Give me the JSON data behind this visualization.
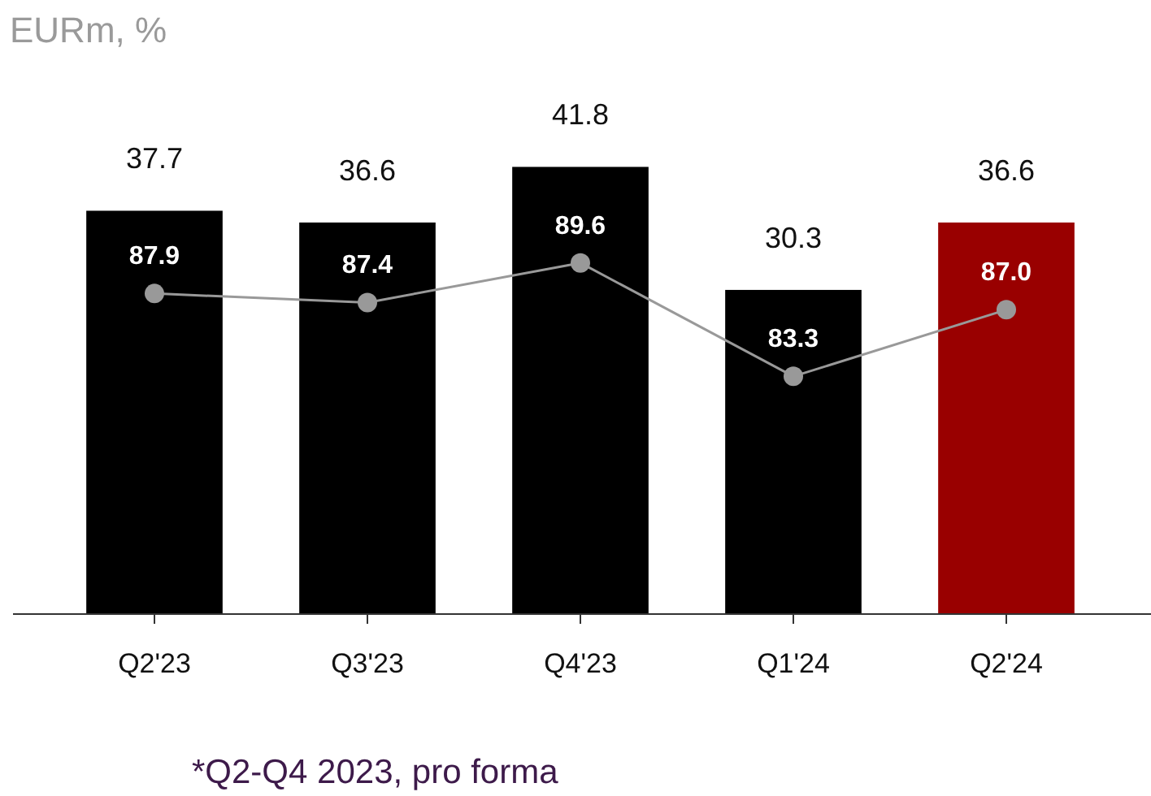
{
  "chart_data": {
    "type": "bar",
    "title": "EURm, %",
    "categories": [
      "Q2'23",
      "Q3'23",
      "Q4'23",
      "Q1'24",
      "Q2'24"
    ],
    "series": [
      {
        "values": [
          37.7,
          36.6,
          41.8,
          30.3,
          36.6
        ],
        "colors": [
          "#000000",
          "#000000",
          "#000000",
          "#000000",
          "#990000"
        ],
        "value_labels": [
          "37.7",
          "36.6",
          "41.8",
          "30.3",
          "36.6"
        ]
      },
      {
        "type": "line",
        "axis": "y2",
        "color": "#999999",
        "values": [
          87.9,
          87.4,
          89.6,
          83.3,
          87.0
        ],
        "value_labels": [
          "87.9",
          "87.4",
          "89.6",
          "83.3",
          "87.0"
        ],
        "marker": "circle"
      }
    ],
    "ylim": [
      0,
      57.4
    ],
    "y2lim": [
      70.1,
      104.2
    ],
    "tick_labels": "x",
    "annotations": [
      "*Q2-Q4 2023, pro forma"
    ]
  }
}
